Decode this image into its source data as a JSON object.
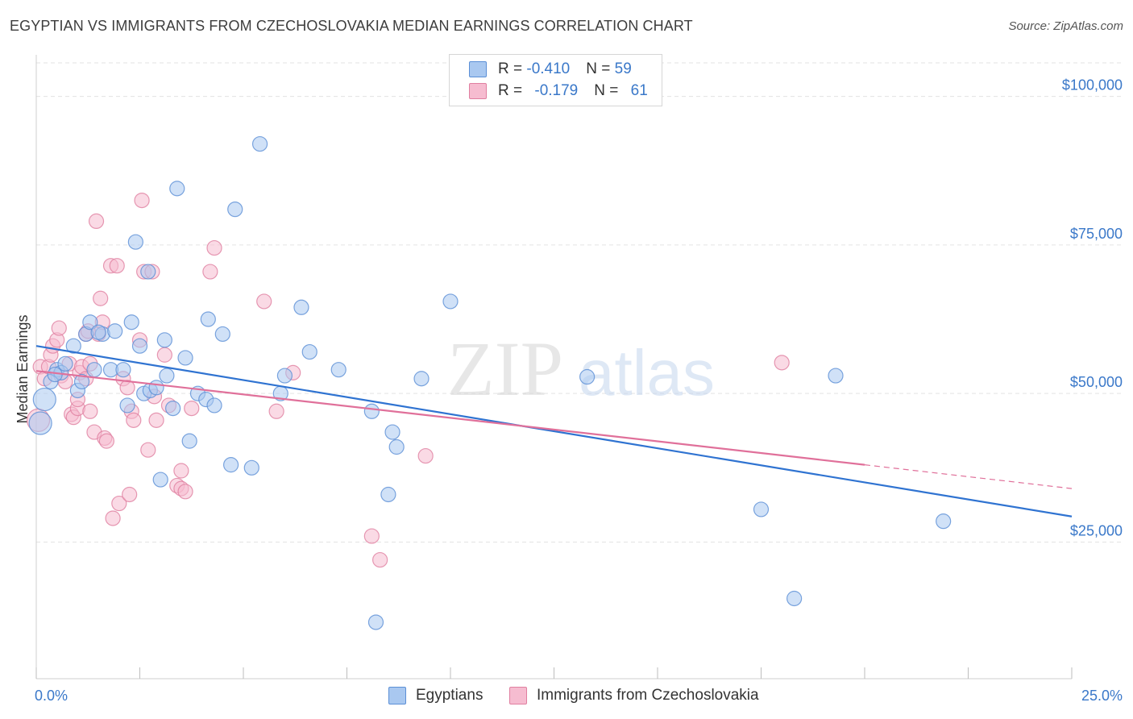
{
  "title": "EGYPTIAN VS IMMIGRANTS FROM CZECHOSLOVAKIA MEDIAN EARNINGS CORRELATION CHART",
  "source": "Source: ZipAtlas.com",
  "watermark": {
    "zip": "ZIP",
    "atlas": "atlas"
  },
  "legend": {
    "rows": [
      {
        "r_label": "R = ",
        "r_value": "-0.410",
        "n_label": "N = ",
        "n_value": "59",
        "color": "#a9c8f0",
        "edge": "#5b8fd6"
      },
      {
        "r_label": "R = ",
        "r_value": "-0.179",
        "n_label": "N = ",
        "n_value": "61",
        "color": "#f6bcd0",
        "edge": "#e07fa0"
      }
    ]
  },
  "colors": {
    "blue_point": "#a9c8f0",
    "blue_edge": "#5b8fd6",
    "blue_line": "#2f73d1",
    "pink_point": "#f6bcd0",
    "pink_edge": "#e07fa0",
    "pink_line": "#e0709a",
    "grid": "#e3e3e3",
    "tick_text": "#3a78c9"
  },
  "chart_data": {
    "type": "scatter",
    "title": "EGYPTIAN VS IMMIGRANTS FROM CZECHOSLOVAKIA MEDIAN EARNINGS CORRELATION CHART",
    "ylabel": "Median Earnings",
    "xlabel": "",
    "xlim": [
      0,
      25
    ],
    "ylim": [
      2000,
      107000
    ],
    "x_tick_labels": [
      "0.0%",
      "25.0%"
    ],
    "y_ticks": [
      25000,
      50000,
      75000,
      100000
    ],
    "y_tick_labels": [
      "$25,000",
      "$50,000",
      "$75,000",
      "$100,000"
    ],
    "grid": true,
    "legend_position": "bottom",
    "series": [
      {
        "name": "Egyptians",
        "color": "#a9c8f0",
        "trend": {
          "x": [
            0,
            25
          ],
          "y": [
            58000,
            29300
          ]
        },
        "points": [
          [
            0.1,
            45000
          ],
          [
            0.2,
            49000
          ],
          [
            0.35,
            52000
          ],
          [
            0.5,
            54000
          ],
          [
            0.6,
            53500
          ],
          [
            0.7,
            55000
          ],
          [
            0.9,
            58000
          ],
          [
            1.0,
            50500
          ],
          [
            1.2,
            60000
          ],
          [
            1.3,
            62000
          ],
          [
            1.4,
            54000
          ],
          [
            1.6,
            60000
          ],
          [
            1.8,
            54000
          ],
          [
            1.9,
            60500
          ],
          [
            2.1,
            54000
          ],
          [
            2.2,
            48000
          ],
          [
            2.3,
            62000
          ],
          [
            2.4,
            75500
          ],
          [
            2.5,
            58000
          ],
          [
            2.6,
            50000
          ],
          [
            2.7,
            70500
          ],
          [
            2.75,
            50500
          ],
          [
            2.9,
            51000
          ],
          [
            3.0,
            35500
          ],
          [
            3.1,
            59000
          ],
          [
            3.15,
            53000
          ],
          [
            3.3,
            47500
          ],
          [
            3.4,
            84500
          ],
          [
            3.6,
            56000
          ],
          [
            3.7,
            42000
          ],
          [
            3.9,
            50000
          ],
          [
            4.1,
            49000
          ],
          [
            4.15,
            62500
          ],
          [
            4.3,
            48000
          ],
          [
            4.5,
            60000
          ],
          [
            4.7,
            38000
          ],
          [
            4.8,
            81000
          ],
          [
            5.2,
            37500
          ],
          [
            5.4,
            92000
          ],
          [
            5.9,
            50000
          ],
          [
            6.0,
            53000
          ],
          [
            6.4,
            64500
          ],
          [
            6.6,
            57000
          ],
          [
            7.3,
            54000
          ],
          [
            8.1,
            47000
          ],
          [
            8.2,
            11500
          ],
          [
            8.5,
            33000
          ],
          [
            8.6,
            43500
          ],
          [
            8.7,
            41000
          ],
          [
            9.3,
            52500
          ],
          [
            10.0,
            65500
          ],
          [
            13.3,
            52800
          ],
          [
            17.5,
            30500
          ],
          [
            18.3,
            15500
          ],
          [
            19.3,
            53000
          ],
          [
            21.9,
            28500
          ],
          [
            1.5,
            60300
          ],
          [
            0.45,
            53200
          ],
          [
            1.1,
            52000
          ]
        ]
      },
      {
        "name": "Immigrants from Czechoslovakia",
        "color": "#f6bcd0",
        "trend": {
          "x": [
            0,
            20
          ],
          "y": [
            53800,
            38000
          ]
        },
        "trend_ext": {
          "x": [
            20,
            25
          ],
          "y": [
            38000,
            34000
          ]
        },
        "points": [
          [
            0.05,
            45500
          ],
          [
            0.1,
            54500
          ],
          [
            0.2,
            52500
          ],
          [
            0.3,
            54500
          ],
          [
            0.35,
            56500
          ],
          [
            0.4,
            58000
          ],
          [
            0.5,
            59000
          ],
          [
            0.55,
            61000
          ],
          [
            0.6,
            53000
          ],
          [
            0.7,
            52000
          ],
          [
            0.8,
            55000
          ],
          [
            0.85,
            46500
          ],
          [
            0.9,
            46000
          ],
          [
            1.0,
            47500
          ],
          [
            1.0,
            49000
          ],
          [
            1.05,
            53500
          ],
          [
            1.1,
            54500
          ],
          [
            1.2,
            60000
          ],
          [
            1.2,
            52500
          ],
          [
            1.3,
            55000
          ],
          [
            1.3,
            47000
          ],
          [
            1.4,
            43500
          ],
          [
            1.45,
            79000
          ],
          [
            1.5,
            60000
          ],
          [
            1.55,
            66000
          ],
          [
            1.6,
            62000
          ],
          [
            1.65,
            42500
          ],
          [
            1.7,
            42000
          ],
          [
            1.8,
            71500
          ],
          [
            1.85,
            29000
          ],
          [
            1.95,
            71500
          ],
          [
            2.0,
            31500
          ],
          [
            2.1,
            52500
          ],
          [
            2.2,
            51000
          ],
          [
            2.25,
            33000
          ],
          [
            2.3,
            47000
          ],
          [
            2.35,
            45500
          ],
          [
            2.5,
            59000
          ],
          [
            2.55,
            82500
          ],
          [
            2.6,
            70500
          ],
          [
            2.7,
            40500
          ],
          [
            2.8,
            70500
          ],
          [
            2.85,
            49500
          ],
          [
            2.9,
            45500
          ],
          [
            3.1,
            56500
          ],
          [
            3.2,
            48000
          ],
          [
            3.4,
            34500
          ],
          [
            3.5,
            37000
          ],
          [
            3.5,
            34000
          ],
          [
            3.6,
            33500
          ],
          [
            3.75,
            47500
          ],
          [
            4.2,
            70500
          ],
          [
            4.3,
            74500
          ],
          [
            5.5,
            65500
          ],
          [
            5.8,
            47000
          ],
          [
            6.2,
            53500
          ],
          [
            8.1,
            26000
          ],
          [
            8.3,
            22000
          ],
          [
            9.4,
            39500
          ],
          [
            18.0,
            55200
          ],
          [
            1.25,
            60500
          ]
        ]
      }
    ]
  }
}
